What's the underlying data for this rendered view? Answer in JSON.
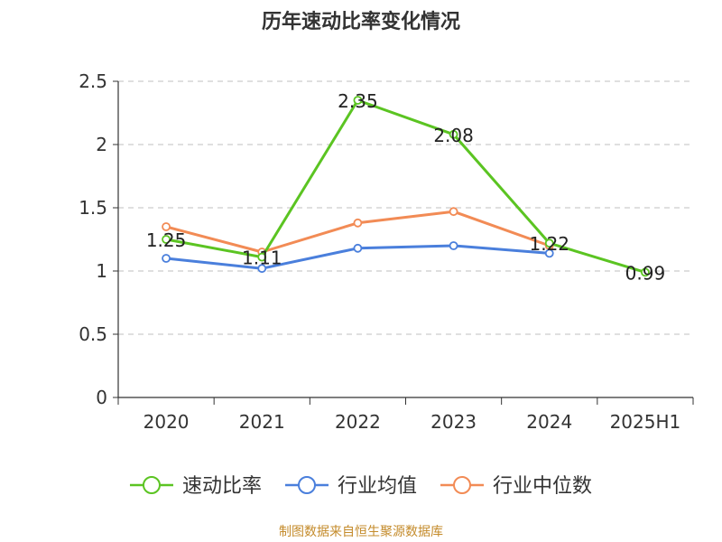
{
  "chart_data": {
    "type": "line",
    "title": "历年速动比率变化情况",
    "categories": [
      "2020",
      "2021",
      "2022",
      "2023",
      "2024",
      "2025H1"
    ],
    "ylim": [
      0,
      2.5
    ],
    "yticks": [
      "0",
      "0.5",
      "1",
      "1.5",
      "2",
      "2.5"
    ],
    "grid": true,
    "legend_position": "bottom",
    "series": [
      {
        "name": "速动比率",
        "color": "#5bc422",
        "values": [
          1.25,
          1.11,
          2.35,
          2.08,
          1.22,
          0.99
        ],
        "labels": [
          "1.25",
          "1.11",
          "2.35",
          "2.08",
          "1.22",
          "0.99"
        ]
      },
      {
        "name": "行业均值",
        "color": "#4a7fdc",
        "values": [
          1.1,
          1.02,
          1.18,
          1.2,
          1.14,
          null
        ]
      },
      {
        "name": "行业中位数",
        "color": "#f28b55",
        "values": [
          1.35,
          1.15,
          1.38,
          1.47,
          1.2,
          null
        ]
      }
    ]
  },
  "footer": {
    "source": "制图数据来自恒生聚源数据库"
  }
}
